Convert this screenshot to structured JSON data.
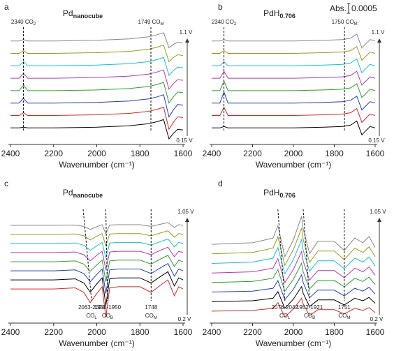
{
  "chart_data": [
    {
      "type": "line",
      "panel": "a",
      "title": "Pd",
      "title_sub": "nanocube",
      "xlabel": "Wavenumber (cm⁻¹)",
      "xlim": [
        2400,
        1600
      ],
      "xticks": [
        2400,
        2200,
        2000,
        1800,
        1600
      ],
      "ylim": [
        -1.2,
        7.5
      ],
      "x": [
        2400,
        2360,
        2340,
        2320,
        2200,
        2000,
        1850,
        1760,
        1720,
        1690,
        1665,
        1645,
        1625,
        1600
      ],
      "series": [
        {
          "color": "#000000",
          "values": [
            0,
            0,
            0.05,
            0,
            0,
            0.05,
            0.15,
            0.3,
            0.45,
            0.6,
            -0.8,
            -0.4,
            -0.1,
            -0.15
          ]
        },
        {
          "color": "#d62728",
          "values": [
            0.9,
            0.9,
            1.1,
            0.9,
            0.9,
            0.95,
            1.05,
            1.2,
            1.35,
            1.5,
            -0.1,
            0.4,
            0.8,
            0.75
          ]
        },
        {
          "color": "#1f3fbf",
          "values": [
            1.8,
            1.8,
            2.15,
            1.8,
            1.8,
            1.85,
            1.95,
            2.1,
            2.25,
            2.4,
            0.8,
            1.3,
            1.7,
            1.65
          ]
        },
        {
          "color": "#2ca02c",
          "values": [
            2.7,
            2.7,
            3.1,
            2.7,
            2.7,
            2.75,
            2.85,
            3.0,
            3.15,
            3.3,
            1.8,
            2.25,
            2.6,
            2.55
          ]
        },
        {
          "color": "#b03ab0",
          "values": [
            3.6,
            3.6,
            3.95,
            3.6,
            3.6,
            3.65,
            3.75,
            3.9,
            4.05,
            4.2,
            2.8,
            3.2,
            3.5,
            3.45
          ]
        },
        {
          "color": "#17becf",
          "values": [
            4.5,
            4.5,
            4.8,
            4.5,
            4.5,
            4.55,
            4.65,
            4.8,
            4.95,
            5.1,
            3.8,
            4.15,
            4.4,
            4.35
          ]
        },
        {
          "color": "#9a9a20",
          "values": [
            5.4,
            5.4,
            5.6,
            5.4,
            5.4,
            5.45,
            5.55,
            5.7,
            5.85,
            6.0,
            4.8,
            5.1,
            5.3,
            5.25
          ]
        },
        {
          "color": "#888888",
          "values": [
            6.3,
            6.3,
            6.4,
            6.3,
            6.3,
            6.35,
            6.45,
            6.6,
            6.75,
            6.9,
            5.8,
            6.05,
            6.2,
            6.15
          ]
        }
      ],
      "voltage_top": "1.1 V",
      "voltage_bottom": "0.15 V",
      "label_pos": "top",
      "annotations": [
        {
          "text": "2340 CO",
          "sub": "2",
          "x": [
            2340,
            2340
          ]
        },
        {
          "text": "1749 CO",
          "sub": "M",
          "x": [
            1749,
            1749
          ]
        }
      ]
    },
    {
      "type": "line",
      "panel": "b",
      "title": "PdH",
      "title_sub": "0.706",
      "xlabel": "Wavenumber (cm⁻¹)",
      "xlim": [
        2400,
        1600
      ],
      "xticks": [
        2400,
        2200,
        2000,
        1800,
        1600
      ],
      "ylim": [
        -1.2,
        7.5
      ],
      "x": [
        2400,
        2360,
        2340,
        2320,
        2200,
        2000,
        1850,
        1760,
        1720,
        1690,
        1665,
        1645,
        1625,
        1600
      ],
      "series": [
        {
          "color": "#000000",
          "values": [
            0,
            0,
            0.1,
            0,
            0,
            0,
            0.05,
            0.1,
            0.2,
            0.5,
            -0.5,
            -0.2,
            0.1,
            0
          ]
        },
        {
          "color": "#d62728",
          "values": [
            0.9,
            0.9,
            1.5,
            0.9,
            0.9,
            0.9,
            0.95,
            1.0,
            1.1,
            1.4,
            0.4,
            0.7,
            1.0,
            0.9
          ]
        },
        {
          "color": "#1f3fbf",
          "values": [
            1.8,
            1.8,
            2.6,
            1.8,
            1.8,
            1.8,
            1.85,
            1.9,
            2.0,
            2.3,
            1.3,
            1.6,
            1.9,
            1.8
          ]
        },
        {
          "color": "#2ca02c",
          "values": [
            2.7,
            2.7,
            3.4,
            2.7,
            2.7,
            2.7,
            2.75,
            2.8,
            2.9,
            3.2,
            2.2,
            2.5,
            2.8,
            2.7
          ]
        },
        {
          "color": "#b03ab0",
          "values": [
            3.6,
            3.6,
            4.1,
            3.6,
            3.6,
            3.6,
            3.65,
            3.7,
            3.8,
            4.1,
            3.1,
            3.4,
            3.7,
            3.6
          ]
        },
        {
          "color": "#17becf",
          "values": [
            4.5,
            4.5,
            4.8,
            4.5,
            4.5,
            4.5,
            4.55,
            4.6,
            4.7,
            5.0,
            4.0,
            4.3,
            4.6,
            4.5
          ]
        },
        {
          "color": "#9a9a20",
          "values": [
            5.4,
            5.4,
            5.6,
            5.4,
            5.4,
            5.4,
            5.45,
            5.5,
            5.6,
            5.9,
            4.9,
            5.2,
            5.5,
            5.4
          ]
        },
        {
          "color": "#888888",
          "values": [
            6.3,
            6.3,
            6.4,
            6.3,
            6.3,
            6.3,
            6.35,
            6.4,
            6.5,
            6.8,
            5.8,
            6.1,
            6.4,
            6.3
          ]
        }
      ],
      "voltage_top": "1.1 V",
      "voltage_bottom": "0.15 V",
      "label_pos": "top",
      "annotations": [
        {
          "text": "2340 CO",
          "sub": "2",
          "x": [
            2340,
            2340
          ]
        },
        {
          "text": "1750 CO",
          "sub": "M",
          "x": [
            1750,
            1750
          ]
        }
      ],
      "scale_bar": {
        "label": "Abs.",
        "value": 0.0005
      }
    },
    {
      "type": "line",
      "panel": "c",
      "title": "Pd",
      "title_sub": "nanocube",
      "xlabel": "Wavenumber (cm⁻¹)",
      "xlim": [
        2400,
        1600
      ],
      "xticks": [
        2400,
        2200,
        2000,
        1800,
        1600
      ],
      "ylim": [
        -3,
        7.5
      ],
      "x": [
        2400,
        2200,
        2100,
        2060,
        2030,
        2000,
        1975,
        1958,
        1940,
        1900,
        1800,
        1748,
        1700,
        1670,
        1640,
        1620,
        1600
      ],
      "series": [
        {
          "color": "#d62728",
          "values": [
            0,
            0,
            0.1,
            -0.3,
            -1.2,
            -0.4,
            0.2,
            -2.5,
            0.1,
            0.2,
            0.2,
            -0.3,
            0.4,
            0.8,
            -0.6,
            0.2,
            0
          ]
        },
        {
          "color": "#000000",
          "values": [
            0.8,
            0.8,
            0.89,
            0.53,
            -0.28,
            0.44,
            0.98,
            -1.45,
            0.89,
            0.98,
            0.98,
            0.53,
            1.16,
            1.52,
            0.26,
            0.98,
            0.8
          ]
        },
        {
          "color": "#1f3fbf",
          "values": [
            1.6,
            1.6,
            1.68,
            1.36,
            0.64,
            1.28,
            1.76,
            -0.4,
            1.68,
            1.76,
            1.76,
            1.36,
            1.92,
            2.24,
            1.12,
            1.76,
            1.6
          ]
        },
        {
          "color": "#2ca02c",
          "values": [
            2.4,
            2.4,
            2.47,
            2.19,
            1.56,
            2.12,
            2.54,
            0.65,
            2.47,
            2.54,
            2.54,
            2.19,
            2.68,
            2.96,
            1.98,
            2.54,
            2.4
          ]
        },
        {
          "color": "#b03ab0",
          "values": [
            3.2,
            3.2,
            3.26,
            3.02,
            2.48,
            2.96,
            3.32,
            1.7,
            3.26,
            3.32,
            3.32,
            3.02,
            3.44,
            3.68,
            2.84,
            3.32,
            3.2
          ]
        },
        {
          "color": "#17becf",
          "values": [
            4,
            4,
            4.05,
            3.85,
            3.4,
            3.8,
            4.1,
            2.75,
            4.05,
            4.1,
            4.1,
            3.85,
            4.2,
            4.4,
            3.7,
            4.1,
            4
          ]
        },
        {
          "color": "#9a9a20",
          "values": [
            4.8,
            4.8,
            4.84,
            4.68,
            4.32,
            4.64,
            4.88,
            3.8,
            4.84,
            4.88,
            4.88,
            4.68,
            4.96,
            5.12,
            4.56,
            4.88,
            4.8
          ]
        },
        {
          "color": "#888888",
          "values": [
            5.6,
            5.6,
            5.63,
            5.51,
            5.24,
            5.48,
            5.66,
            4.85,
            5.63,
            5.66,
            5.66,
            5.51,
            5.72,
            5.84,
            5.42,
            5.66,
            5.6
          ]
        }
      ],
      "voltage_top": "1.05 V",
      "voltage_bottom": "0.2 V",
      "label_pos": "bottom",
      "annotations": [
        {
          "text": "2063-2024",
          "text2": "CO",
          "sub": "L",
          "x": [
            2063,
            2024
          ]
        },
        {
          "text": "1958-1950",
          "text2": "CO",
          "sub": "B",
          "x": [
            1958,
            1950
          ]
        },
        {
          "text": "1748",
          "text2": "CO",
          "sub": "M",
          "x": [
            1748,
            1748
          ]
        }
      ]
    },
    {
      "type": "line",
      "panel": "d",
      "title": "PdH",
      "title_sub": "0.706",
      "xlabel": "Wavenumber (cm⁻¹)",
      "xlim": [
        2400,
        1600
      ],
      "xticks": [
        2400,
        2200,
        2000,
        1800,
        1600
      ],
      "ylim": [
        -1,
        9
      ],
      "x": [
        2400,
        2200,
        2100,
        2076,
        2042,
        2000,
        1960,
        1952,
        1921,
        1880,
        1800,
        1751,
        1700,
        1660,
        1630,
        1600
      ],
      "series": [
        {
          "color": "#d62728",
          "values": [
            0,
            0.06,
            0.24,
            0.72,
            -0.48,
            0.18,
            1.08,
            0.6,
            -0.36,
            0.12,
            0.12,
            -0.24,
            0.24,
            0.06,
            0.3,
            -0.12
          ]
        },
        {
          "color": "#000000",
          "values": [
            0.8,
            0.87,
            1.08,
            1.64,
            0.24,
            1.01,
            2.06,
            1.5,
            0.38,
            0.94,
            0.94,
            0.52,
            1.08,
            0.87,
            1.15,
            0.66
          ]
        },
        {
          "color": "#1f3fbf",
          "values": [
            1.6,
            1.68,
            1.92,
            2.56,
            0.96,
            1.84,
            3.04,
            2.4,
            1.12,
            1.76,
            1.76,
            1.28,
            1.92,
            1.68,
            2,
            1.44
          ]
        },
        {
          "color": "#2ca02c",
          "values": [
            2.4,
            2.49,
            2.76,
            3.48,
            1.68,
            2.67,
            4.02,
            3.3,
            1.86,
            2.58,
            2.58,
            2.04,
            2.76,
            2.49,
            2.85,
            2.22
          ]
        },
        {
          "color": "#b03ab0",
          "values": [
            3.2,
            3.3,
            3.6,
            4.4,
            2.4,
            3.5,
            5.0,
            4.2,
            2.6,
            3.4,
            3.4,
            2.8,
            3.6,
            3.3,
            3.7,
            3.0
          ]
        },
        {
          "color": "#17becf",
          "values": [
            4,
            4.11,
            4.44,
            5.32,
            3.12,
            4.33,
            5.98,
            5.1,
            3.34,
            4.22,
            4.22,
            3.56,
            4.44,
            4.11,
            4.55,
            3.78
          ]
        },
        {
          "color": "#9a9a20",
          "values": [
            4.8,
            4.92,
            5.28,
            6.24,
            3.84,
            5.16,
            6.96,
            6,
            4.08,
            5.04,
            5.04,
            4.32,
            5.28,
            4.92,
            5.4,
            4.56
          ]
        },
        {
          "color": "#888888",
          "values": [
            5.6,
            5.73,
            6.12,
            7.16,
            4.56,
            5.99,
            7.94,
            6.9,
            4.82,
            5.86,
            5.86,
            5.08,
            6.12,
            5.73,
            6.25,
            5.34
          ]
        }
      ],
      "voltage_top": "1.05 V",
      "voltage_bottom": "0.2 V",
      "label_pos": "bottom",
      "annotations": [
        {
          "text": "2076-2042",
          "text2": "CO",
          "sub": "L",
          "x": [
            2076,
            2042
          ]
        },
        {
          "text": "1952-1921",
          "text2": "CO",
          "sub": "B",
          "x": [
            1952,
            1921
          ]
        },
        {
          "text": "1751",
          "text2": "CO",
          "sub": "M",
          "x": [
            1751,
            1751
          ]
        }
      ]
    }
  ]
}
